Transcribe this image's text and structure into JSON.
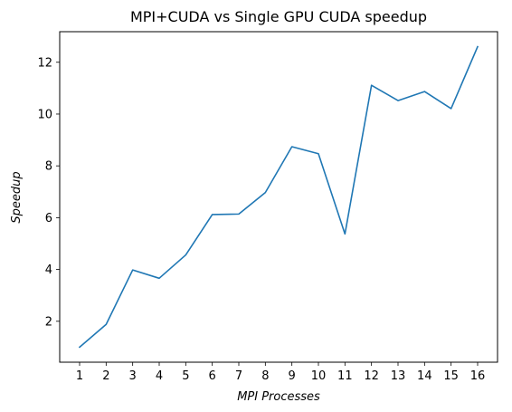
{
  "chart_data": {
    "type": "line",
    "title": "MPI+CUDA vs Single GPU CUDA speedup",
    "xlabel": "MPI Processes",
    "ylabel": "Speedup",
    "x": [
      1,
      2,
      3,
      4,
      5,
      6,
      7,
      8,
      9,
      10,
      11,
      12,
      13,
      14,
      15,
      16
    ],
    "xticks": [
      "1",
      "2",
      "3",
      "4",
      "5",
      "6",
      "7",
      "8",
      "9",
      "10",
      "11",
      "12",
      "13",
      "14",
      "15",
      "16"
    ],
    "yticks": [
      2,
      4,
      6,
      8,
      10,
      12
    ],
    "xlim": [
      0.25,
      16.75
    ],
    "ylim": [
      0.42,
      13.18
    ],
    "grid": false,
    "series": [
      {
        "color": "#1f77b4",
        "values": [
          1.0,
          1.88,
          3.98,
          3.66,
          4.56,
          6.12,
          6.14,
          6.97,
          8.74,
          8.47,
          5.37,
          11.11,
          10.52,
          10.87,
          10.21,
          12.6
        ]
      }
    ]
  }
}
